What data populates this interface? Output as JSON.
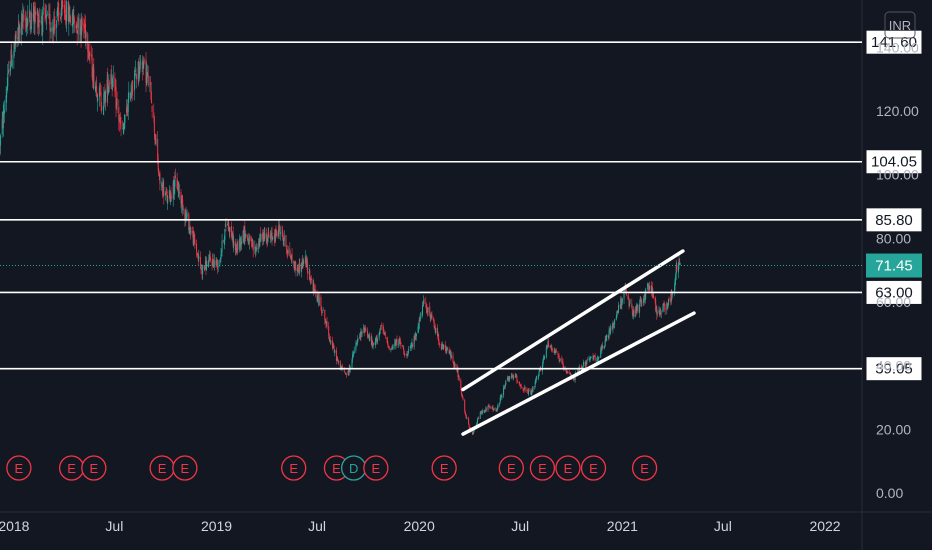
{
  "chart_data": {
    "type": "candlestick",
    "currency": "INR",
    "ylim": [
      0,
      147
    ],
    "y_ticks": [
      {
        "value": 0,
        "label": "0.00"
      },
      {
        "value": 20,
        "label": "20.00"
      },
      {
        "value": 40,
        "label": "40.00"
      },
      {
        "value": 60,
        "label": "60.00"
      },
      {
        "value": 80,
        "label": "80.00"
      },
      {
        "value": 100,
        "label": "100.00"
      },
      {
        "value": 120,
        "label": "120.00"
      },
      {
        "value": 140,
        "label": "140.00"
      }
    ],
    "x_ticks": [
      {
        "date": "2018-01-01",
        "label": "2018"
      },
      {
        "date": "2018-07-01",
        "label": "Jul"
      },
      {
        "date": "2019-01-01",
        "label": "2019"
      },
      {
        "date": "2019-07-01",
        "label": "Jul"
      },
      {
        "date": "2020-01-01",
        "label": "2020"
      },
      {
        "date": "2020-07-01",
        "label": "Jul"
      },
      {
        "date": "2021-01-01",
        "label": "2021"
      },
      {
        "date": "2021-07-01",
        "label": "Jul"
      },
      {
        "date": "2022-01-01",
        "label": "2022"
      }
    ],
    "x_range": [
      "2017-12-07",
      "2022-03-05"
    ],
    "horizontal_levels": [
      {
        "value": 141.6,
        "label": "141.60"
      },
      {
        "value": 104.05,
        "label": "104.05"
      },
      {
        "value": 85.8,
        "label": "85.80"
      },
      {
        "value": 63.0,
        "label": "63.00"
      },
      {
        "value": 39.05,
        "label": "39.05"
      }
    ],
    "current_price": {
      "value": 71.45,
      "label": "71.45",
      "color": "#26a69a"
    },
    "channel_lines": [
      {
        "from": {
          "date": "2020-03-20",
          "value": 32.5
        },
        "to": {
          "date": "2021-04-20",
          "value": 76
        }
      },
      {
        "from": {
          "date": "2020-03-20",
          "value": 18.5
        },
        "to": {
          "date": "2021-05-10",
          "value": 56.5
        }
      }
    ],
    "price_path": [
      [
        "2017-12-07",
        110
      ],
      [
        "2017-12-25",
        135
      ],
      [
        "2018-01-15",
        148
      ],
      [
        "2018-02-10",
        150
      ],
      [
        "2018-03-10",
        147
      ],
      [
        "2018-04-01",
        152
      ],
      [
        "2018-04-20",
        148
      ],
      [
        "2018-05-10",
        146
      ],
      [
        "2018-05-25",
        130
      ],
      [
        "2018-06-10",
        122
      ],
      [
        "2018-06-25",
        132
      ],
      [
        "2018-07-15",
        112
      ],
      [
        "2018-08-01",
        128
      ],
      [
        "2018-08-20",
        136
      ],
      [
        "2018-09-05",
        126
      ],
      [
        "2018-09-20",
        98
      ],
      [
        "2018-10-05",
        92
      ],
      [
        "2018-10-20",
        98
      ],
      [
        "2018-11-05",
        88
      ],
      [
        "2018-11-20",
        80
      ],
      [
        "2018-12-05",
        70
      ],
      [
        "2018-12-20",
        73
      ],
      [
        "2019-01-05",
        72
      ],
      [
        "2019-01-20",
        86
      ],
      [
        "2019-02-05",
        76
      ],
      [
        "2019-02-20",
        82
      ],
      [
        "2019-03-10",
        76
      ],
      [
        "2019-03-25",
        81
      ],
      [
        "2019-04-10",
        80
      ],
      [
        "2019-04-25",
        83
      ],
      [
        "2019-05-10",
        76
      ],
      [
        "2019-05-25",
        70
      ],
      [
        "2019-06-10",
        73
      ],
      [
        "2019-06-25",
        64
      ],
      [
        "2019-07-10",
        58
      ],
      [
        "2019-07-25",
        48
      ],
      [
        "2019-08-10",
        40
      ],
      [
        "2019-08-25",
        37
      ],
      [
        "2019-09-10",
        47
      ],
      [
        "2019-09-25",
        52
      ],
      [
        "2019-10-10",
        46
      ],
      [
        "2019-10-25",
        52
      ],
      [
        "2019-11-10",
        45
      ],
      [
        "2019-11-25",
        48
      ],
      [
        "2019-12-10",
        43
      ],
      [
        "2019-12-25",
        49
      ],
      [
        "2020-01-10",
        60
      ],
      [
        "2020-01-25",
        54
      ],
      [
        "2020-02-10",
        46
      ],
      [
        "2020-02-25",
        44
      ],
      [
        "2020-03-10",
        38
      ],
      [
        "2020-03-25",
        24
      ],
      [
        "2020-04-05",
        18
      ],
      [
        "2020-04-20",
        25
      ],
      [
        "2020-05-05",
        27
      ],
      [
        "2020-05-20",
        26
      ],
      [
        "2020-06-05",
        35
      ],
      [
        "2020-06-20",
        37
      ],
      [
        "2020-07-05",
        33
      ],
      [
        "2020-07-20",
        31
      ],
      [
        "2020-08-05",
        38
      ],
      [
        "2020-08-20",
        47
      ],
      [
        "2020-09-05",
        44
      ],
      [
        "2020-09-20",
        38
      ],
      [
        "2020-10-05",
        36
      ],
      [
        "2020-10-20",
        40
      ],
      [
        "2020-11-05",
        42
      ],
      [
        "2020-11-20",
        43
      ],
      [
        "2020-12-05",
        49
      ],
      [
        "2020-12-20",
        55
      ],
      [
        "2021-01-05",
        64
      ],
      [
        "2021-01-20",
        56
      ],
      [
        "2021-02-05",
        60
      ],
      [
        "2021-02-20",
        66
      ],
      [
        "2021-03-05",
        56
      ],
      [
        "2021-03-20",
        59
      ],
      [
        "2021-04-01",
        62
      ],
      [
        "2021-04-10",
        72
      ],
      [
        "2021-04-15",
        71.45
      ]
    ],
    "events": [
      {
        "date": "2018-01-10",
        "label": "E",
        "kind": "earnings"
      },
      {
        "date": "2018-04-15",
        "label": "E",
        "kind": "earnings"
      },
      {
        "date": "2018-05-25",
        "label": "E",
        "kind": "earnings"
      },
      {
        "date": "2018-09-25",
        "label": "E",
        "kind": "earnings"
      },
      {
        "date": "2018-11-05",
        "label": "E",
        "kind": "earnings"
      },
      {
        "date": "2019-05-20",
        "label": "E",
        "kind": "earnings"
      },
      {
        "date": "2019-08-05",
        "label": "E",
        "kind": "earnings"
      },
      {
        "date": "2019-09-05",
        "label": "D",
        "kind": "dividend"
      },
      {
        "date": "2019-10-15",
        "label": "E",
        "kind": "earnings"
      },
      {
        "date": "2020-02-15",
        "label": "E",
        "kind": "earnings"
      },
      {
        "date": "2020-06-15",
        "label": "E",
        "kind": "earnings"
      },
      {
        "date": "2020-08-10",
        "label": "E",
        "kind": "earnings"
      },
      {
        "date": "2020-09-25",
        "label": "E",
        "kind": "earnings"
      },
      {
        "date": "2020-11-10",
        "label": "E",
        "kind": "earnings"
      },
      {
        "date": "2021-02-10",
        "label": "E",
        "kind": "earnings"
      }
    ],
    "colors": {
      "background": "#131722",
      "up": "#26a69a",
      "down": "#f23645",
      "level_line": "#ffffff",
      "grid": "#1e222d"
    }
  }
}
